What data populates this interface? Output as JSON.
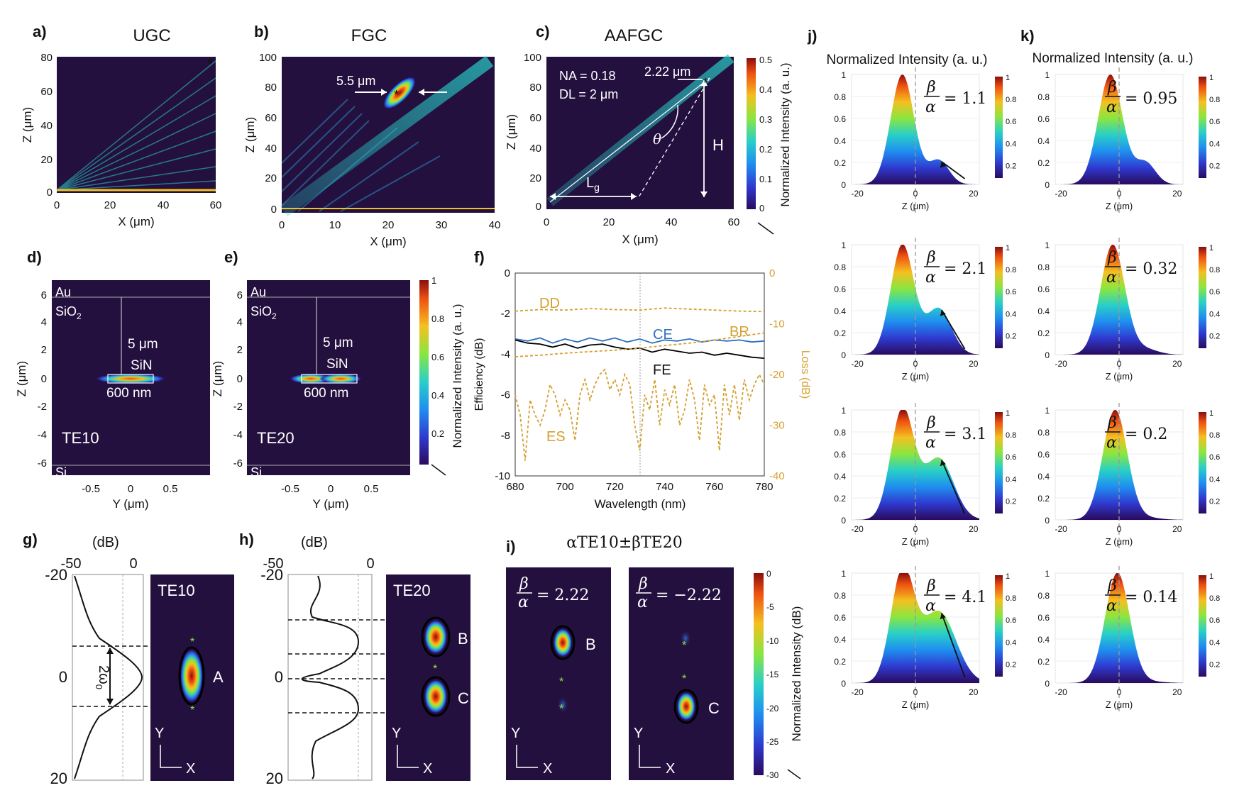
{
  "colors": {
    "ce": "#2e6fbf",
    "fe": "#000000",
    "loss": "#d4a030",
    "dark": "#24103f",
    "accent": "#ffffff"
  },
  "panels": {
    "a": {
      "label": "a)",
      "title": "UGC",
      "xlabel": "X (μm)",
      "ylabel": "Z (μm)",
      "xticks": [
        "0",
        "20",
        "40",
        "60"
      ],
      "yticks": [
        "80",
        "60",
        "40",
        "20",
        "0"
      ]
    },
    "b": {
      "label": "b)",
      "title": "FGC",
      "xlabel": "X (μm)",
      "ylabel": "Z (μm)",
      "xticks": [
        "0",
        "10",
        "20",
        "30",
        "40"
      ],
      "yticks": [
        "100",
        "80",
        "60",
        "40",
        "20",
        "0"
      ],
      "spot": "5.5 μm"
    },
    "c": {
      "label": "c)",
      "title": "AAFGC",
      "xlabel": "X (μm)",
      "ylabel": "Z (μm)",
      "xticks": [
        "0",
        "20",
        "40",
        "60"
      ],
      "yticks": [
        "100",
        "80",
        "60",
        "40",
        "20",
        "0"
      ],
      "na": "NA = 0.18",
      "dl": "DL = 2 μm",
      "spot": "2.22 μm",
      "theta": "θ",
      "H": "H",
      "Lg": "L",
      "Lg_sub": "g",
      "cbar_ticks": [
        "0.5",
        "0.4",
        "0.3",
        "0.2",
        "0.1",
        "0"
      ],
      "cbar_label": "Normalized Intensity (a. u.)"
    },
    "d": {
      "label": "d)",
      "mode": "TE10",
      "au": "Au",
      "sio2": "SiO",
      "sio2_sub": "2",
      "thick": "5 μm",
      "sin": "SiN",
      "width": "600 nm",
      "si": "Si",
      "xlabel": "Y (μm)",
      "ylabel": "Z (μm)",
      "xticks": [
        "-0.5",
        "0",
        "0.5"
      ],
      "yticks": [
        "6",
        "4",
        "2",
        "0",
        "-2",
        "-4",
        "-6"
      ]
    },
    "e": {
      "label": "e)",
      "mode": "TE20",
      "au": "Au",
      "sio2": "SiO",
      "sio2_sub": "2",
      "thick": "5 μm",
      "sin": "SiN",
      "width": "600 nm",
      "si": "Si",
      "xlabel": "Y (μm)",
      "ylabel": "Z (μm)",
      "xticks": [
        "-0.5",
        "0",
        "0.5"
      ],
      "yticks": [
        "6",
        "4",
        "2",
        "0",
        "-2",
        "-4",
        "-6"
      ],
      "cbar_ticks": [
        "1",
        "0.8",
        "0.6",
        "0.4",
        "0.2"
      ],
      "cbar_label": "Normalized Intensity (a. u.)"
    },
    "f": {
      "label": "f)",
      "dd": "DD",
      "br": "BR",
      "ce": "CE",
      "fe": "FE",
      "es": "ES"
    },
    "g": {
      "label": "g)",
      "db": "(dB)",
      "dbticks": [
        "-50",
        "0"
      ],
      "yticks": [
        "-20",
        "0",
        "20"
      ],
      "w0": "2ω",
      "w0_sub": "0",
      "mode": "TE10",
      "spotA": "A",
      "y": "Y",
      "x": "X"
    },
    "h": {
      "label": "h)",
      "db": "(dB)",
      "dbticks": [
        "-50",
        "0"
      ],
      "yticks": [
        "-20",
        "0",
        "20"
      ],
      "mode": "TE20",
      "spotB": "B",
      "spotC": "C",
      "y": "Y",
      "x": "X"
    },
    "i": {
      "label": "i)",
      "title": "αTE10±βTE20",
      "left": "= 2.22",
      "right": "= −2.22",
      "spotB": "B",
      "spotC": "C",
      "y": "Y",
      "x": "X",
      "cbar_ticks": [
        "0",
        "-5",
        "-10",
        "-15",
        "-20",
        "-25",
        "-30"
      ],
      "cbar_label": "Normalized Intensity (dB)"
    },
    "j": {
      "label": "j)",
      "title": "Normalized Intensity (a. u.)",
      "ratios": [
        "= 1.1",
        "= 2.1",
        "= 3.1",
        "= 4.1"
      ],
      "side": [
        0.22,
        0.42,
        0.56,
        0.65
      ]
    },
    "k": {
      "label": "k)",
      "title": "Normalized Intensity (a. u.)",
      "ratios": [
        "= 0.95",
        "= 0.32",
        "= 0.2",
        "= 0.14"
      ],
      "side": [
        0.2,
        0.05,
        0.02,
        0.015
      ]
    },
    "profile": {
      "xticks": [
        "-20",
        "0",
        "20"
      ],
      "yticks": [
        "1",
        "0.8",
        "0.6",
        "0.4",
        "0.2",
        "0"
      ],
      "xlabel": "Z (μm)",
      "cbar_ticks": [
        "1",
        "0.8",
        "0.6",
        "0.4",
        "0.2"
      ],
      "beta": "β",
      "alpha": "α"
    }
  },
  "chart_data": {
    "type": "line",
    "title": "",
    "xlabel": "Wavelength (nm)",
    "ylabel": "Efficiency (dB)",
    "y2label": "Loss (dB)",
    "xlim": [
      680,
      780
    ],
    "ylim": [
      -10,
      0
    ],
    "y2lim": [
      -40,
      0
    ],
    "xticks": [
      "680",
      "700",
      "720",
      "740",
      "760",
      "780"
    ],
    "yticks": [
      "0",
      "-2",
      "-4",
      "-6",
      "-8",
      "-10"
    ],
    "y2ticks": [
      "0",
      "-10",
      "-20",
      "-30",
      "-40"
    ],
    "series": [
      {
        "name": "CE",
        "axis": "left",
        "x": [
          680,
          685,
          690,
          695,
          700,
          705,
          710,
          715,
          720,
          725,
          730,
          735,
          740,
          745,
          750,
          755,
          760,
          765,
          770,
          775,
          780
        ],
        "values": [
          -3.25,
          -3.35,
          -3.2,
          -3.45,
          -3.25,
          -3.4,
          -3.2,
          -3.35,
          -3.2,
          -3.4,
          -3.25,
          -3.45,
          -3.3,
          -3.35,
          -3.25,
          -3.4,
          -3.3,
          -3.35,
          -3.3,
          -3.4,
          -3.35
        ]
      },
      {
        "name": "FE",
        "axis": "left",
        "x": [
          680,
          685,
          690,
          695,
          700,
          705,
          710,
          715,
          720,
          725,
          730,
          735,
          740,
          745,
          750,
          755,
          760,
          765,
          770,
          775,
          780
        ],
        "values": [
          -3.3,
          -3.45,
          -3.5,
          -3.65,
          -3.5,
          -3.7,
          -3.55,
          -3.5,
          -3.65,
          -3.75,
          -3.7,
          -3.9,
          -3.75,
          -3.85,
          -3.95,
          -3.9,
          -4.05,
          -3.95,
          -4.05,
          -4.15,
          -4.2
        ]
      },
      {
        "name": "DD",
        "axis": "right",
        "x": [
          680,
          690,
          700,
          710,
          720,
          730,
          740,
          750,
          760,
          770,
          780
        ],
        "values": [
          -7.5,
          -7.2,
          -7.3,
          -7.0,
          -7.2,
          -7.3,
          -6.9,
          -7.1,
          -7.3,
          -7.5,
          -7.6
        ]
      },
      {
        "name": "BR",
        "axis": "right",
        "x": [
          680,
          690,
          700,
          710,
          720,
          730,
          740,
          750,
          760,
          770,
          780
        ],
        "values": [
          -16.5,
          -16.2,
          -15.8,
          -15.5,
          -15.2,
          -14.8,
          -14.3,
          -13.8,
          -13.2,
          -12.5,
          -11.8
        ]
      },
      {
        "name": "ES",
        "axis": "right",
        "x": [
          680,
          682,
          684,
          686,
          688,
          690,
          692,
          694,
          696,
          698,
          700,
          702,
          704,
          706,
          708,
          710,
          712,
          714,
          716,
          718,
          720,
          722,
          724,
          726,
          728,
          730,
          732,
          734,
          736,
          738,
          740,
          742,
          744,
          746,
          748,
          750,
          752,
          754,
          756,
          758,
          760,
          762,
          764,
          766,
          768,
          770,
          772,
          774,
          776,
          778,
          780
        ],
        "values": [
          -24,
          -28,
          -37,
          -25,
          -28,
          -30,
          -27,
          -22,
          -24,
          -28,
          -25,
          -27,
          -33,
          -24,
          -21,
          -25,
          -22,
          -20,
          -19,
          -23,
          -21,
          -24,
          -20,
          -22,
          -30,
          -35,
          -24,
          -27,
          -21,
          -30,
          -23,
          -26,
          -22,
          -30,
          -27,
          -21,
          -25,
          -33,
          -22,
          -26,
          -24,
          -35,
          -22,
          -28,
          -22,
          -29,
          -21,
          -25,
          -22,
          -20,
          -22
        ]
      }
    ]
  }
}
